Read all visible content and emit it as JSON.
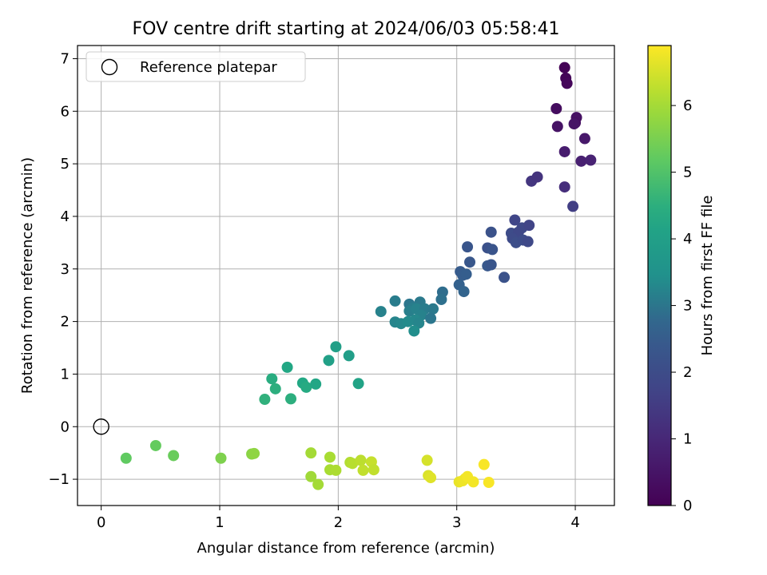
{
  "chart_data": {
    "type": "scatter",
    "title": "FOV centre drift starting at 2024/06/03 05:58:41",
    "xlabel": "Angular distance from reference (arcmin)",
    "ylabel": "Rotation from reference (arcmin)",
    "xlim": [
      -0.2,
      4.33
    ],
    "ylim": [
      -1.5,
      7.25
    ],
    "xticks": [
      0,
      1,
      2,
      3,
      4
    ],
    "yticks": [
      -1,
      0,
      1,
      2,
      3,
      4,
      5,
      6,
      7
    ],
    "grid": true,
    "legend": {
      "position": "top-left",
      "entries": [
        "Reference platepar"
      ]
    },
    "reference_point": {
      "x": 0,
      "y": 0
    },
    "colorbar": {
      "label": "Hours from first FF file",
      "colormap": "viridis",
      "range": [
        0,
        6.9
      ],
      "ticks": [
        0,
        1,
        2,
        3,
        4,
        5,
        6
      ]
    },
    "points": [
      {
        "x": 3.91,
        "y": 6.83,
        "hours": 0.05
      },
      {
        "x": 3.92,
        "y": 6.63,
        "hours": 0.1
      },
      {
        "x": 3.93,
        "y": 6.53,
        "hours": 0.15
      },
      {
        "x": 3.84,
        "y": 6.05,
        "hours": 0.3
      },
      {
        "x": 3.85,
        "y": 5.71,
        "hours": 0.45
      },
      {
        "x": 4.01,
        "y": 5.88,
        "hours": 0.4
      },
      {
        "x": 4.0,
        "y": 5.78,
        "hours": 0.35
      },
      {
        "x": 3.99,
        "y": 5.76,
        "hours": 0.5
      },
      {
        "x": 4.08,
        "y": 5.48,
        "hours": 0.6
      },
      {
        "x": 3.91,
        "y": 5.23,
        "hours": 0.7
      },
      {
        "x": 4.05,
        "y": 5.05,
        "hours": 0.8
      },
      {
        "x": 4.13,
        "y": 5.07,
        "hours": 0.85
      },
      {
        "x": 3.63,
        "y": 4.67,
        "hours": 1.35
      },
      {
        "x": 3.68,
        "y": 4.75,
        "hours": 1.3
      },
      {
        "x": 3.91,
        "y": 4.56,
        "hours": 1.15
      },
      {
        "x": 3.98,
        "y": 4.19,
        "hours": 1.6
      },
      {
        "x": 3.49,
        "y": 3.93,
        "hours": 1.8
      },
      {
        "x": 3.55,
        "y": 3.78,
        "hours": 1.9
      },
      {
        "x": 3.61,
        "y": 3.83,
        "hours": 1.75
      },
      {
        "x": 3.46,
        "y": 3.68,
        "hours": 2.0
      },
      {
        "x": 3.52,
        "y": 3.7,
        "hours": 1.85
      },
      {
        "x": 3.47,
        "y": 3.58,
        "hours": 1.95
      },
      {
        "x": 3.5,
        "y": 3.5,
        "hours": 2.05
      },
      {
        "x": 3.56,
        "y": 3.55,
        "hours": 2.0
      },
      {
        "x": 3.6,
        "y": 3.52,
        "hours": 1.9
      },
      {
        "x": 3.29,
        "y": 3.7,
        "hours": 2.2
      },
      {
        "x": 3.09,
        "y": 3.42,
        "hours": 2.3
      },
      {
        "x": 3.26,
        "y": 3.4,
        "hours": 2.15
      },
      {
        "x": 3.3,
        "y": 3.37,
        "hours": 2.25
      },
      {
        "x": 3.11,
        "y": 3.13,
        "hours": 2.35
      },
      {
        "x": 3.26,
        "y": 3.06,
        "hours": 2.4
      },
      {
        "x": 3.29,
        "y": 3.08,
        "hours": 2.3
      },
      {
        "x": 3.03,
        "y": 2.95,
        "hours": 2.5
      },
      {
        "x": 3.05,
        "y": 2.88,
        "hours": 2.55
      },
      {
        "x": 3.08,
        "y": 2.9,
        "hours": 2.6
      },
      {
        "x": 3.4,
        "y": 2.84,
        "hours": 2.2
      },
      {
        "x": 3.02,
        "y": 2.7,
        "hours": 2.65
      },
      {
        "x": 3.06,
        "y": 2.57,
        "hours": 2.7
      },
      {
        "x": 2.88,
        "y": 2.56,
        "hours": 2.85
      },
      {
        "x": 2.87,
        "y": 2.42,
        "hours": 2.9
      },
      {
        "x": 2.36,
        "y": 2.19,
        "hours": 3.2
      },
      {
        "x": 2.48,
        "y": 2.39,
        "hours": 3.1
      },
      {
        "x": 2.6,
        "y": 2.33,
        "hours": 3.0
      },
      {
        "x": 2.69,
        "y": 2.37,
        "hours": 3.05
      },
      {
        "x": 2.63,
        "y": 2.26,
        "hours": 3.1
      },
      {
        "x": 2.6,
        "y": 2.2,
        "hours": 3.15
      },
      {
        "x": 2.66,
        "y": 2.24,
        "hours": 3.2
      },
      {
        "x": 2.73,
        "y": 2.24,
        "hours": 3.1
      },
      {
        "x": 2.8,
        "y": 2.24,
        "hours": 3.05
      },
      {
        "x": 2.7,
        "y": 2.12,
        "hours": 3.2
      },
      {
        "x": 2.78,
        "y": 2.06,
        "hours": 3.0
      },
      {
        "x": 2.48,
        "y": 1.99,
        "hours": 3.25
      },
      {
        "x": 2.53,
        "y": 1.96,
        "hours": 3.3
      },
      {
        "x": 2.59,
        "y": 2.0,
        "hours": 3.35
      },
      {
        "x": 2.65,
        "y": 2.03,
        "hours": 3.3
      },
      {
        "x": 2.68,
        "y": 1.97,
        "hours": 3.25
      },
      {
        "x": 2.64,
        "y": 1.82,
        "hours": 3.4
      },
      {
        "x": 1.98,
        "y": 1.52,
        "hours": 4.0
      },
      {
        "x": 2.09,
        "y": 1.35,
        "hours": 3.95
      },
      {
        "x": 1.92,
        "y": 1.26,
        "hours": 4.05
      },
      {
        "x": 1.57,
        "y": 1.13,
        "hours": 4.3
      },
      {
        "x": 1.44,
        "y": 0.91,
        "hours": 4.45
      },
      {
        "x": 1.7,
        "y": 0.83,
        "hours": 4.35
      },
      {
        "x": 1.73,
        "y": 0.75,
        "hours": 4.4
      },
      {
        "x": 1.81,
        "y": 0.81,
        "hours": 4.25
      },
      {
        "x": 2.17,
        "y": 0.82,
        "hours": 4.15
      },
      {
        "x": 1.47,
        "y": 0.72,
        "hours": 4.5
      },
      {
        "x": 1.38,
        "y": 0.52,
        "hours": 4.55
      },
      {
        "x": 1.6,
        "y": 0.53,
        "hours": 4.5
      },
      {
        "x": 0.21,
        "y": -0.6,
        "hours": 5.2
      },
      {
        "x": 0.46,
        "y": -0.36,
        "hours": 5.25
      },
      {
        "x": 0.61,
        "y": -0.55,
        "hours": 5.3
      },
      {
        "x": 1.01,
        "y": -0.6,
        "hours": 5.55
      },
      {
        "x": 1.27,
        "y": -0.52,
        "hours": 5.7
      },
      {
        "x": 1.29,
        "y": -0.51,
        "hours": 5.75
      },
      {
        "x": 1.77,
        "y": -0.5,
        "hours": 6.0
      },
      {
        "x": 1.93,
        "y": -0.58,
        "hours": 6.05
      },
      {
        "x": 1.77,
        "y": -0.95,
        "hours": 5.95
      },
      {
        "x": 1.83,
        "y": -1.1,
        "hours": 6.0
      },
      {
        "x": 1.93,
        "y": -0.82,
        "hours": 6.05
      },
      {
        "x": 1.98,
        "y": -0.83,
        "hours": 6.1
      },
      {
        "x": 2.1,
        "y": -0.68,
        "hours": 6.15
      },
      {
        "x": 2.12,
        "y": -0.7,
        "hours": 6.2
      },
      {
        "x": 2.19,
        "y": -0.64,
        "hours": 6.25
      },
      {
        "x": 2.21,
        "y": -0.83,
        "hours": 6.3
      },
      {
        "x": 2.28,
        "y": -0.67,
        "hours": 6.35
      },
      {
        "x": 2.3,
        "y": -0.82,
        "hours": 6.3
      },
      {
        "x": 2.75,
        "y": -0.64,
        "hours": 6.5
      },
      {
        "x": 2.76,
        "y": -0.93,
        "hours": 6.55
      },
      {
        "x": 2.78,
        "y": -0.97,
        "hours": 6.6
      },
      {
        "x": 3.02,
        "y": -1.05,
        "hours": 6.7
      },
      {
        "x": 3.05,
        "y": -1.03,
        "hours": 6.75
      },
      {
        "x": 3.07,
        "y": -0.99,
        "hours": 6.75
      },
      {
        "x": 3.09,
        "y": -0.95,
        "hours": 6.8
      },
      {
        "x": 3.14,
        "y": -1.05,
        "hours": 6.8
      },
      {
        "x": 3.23,
        "y": -0.72,
        "hours": 6.85
      },
      {
        "x": 3.27,
        "y": -1.06,
        "hours": 6.85
      }
    ]
  }
}
